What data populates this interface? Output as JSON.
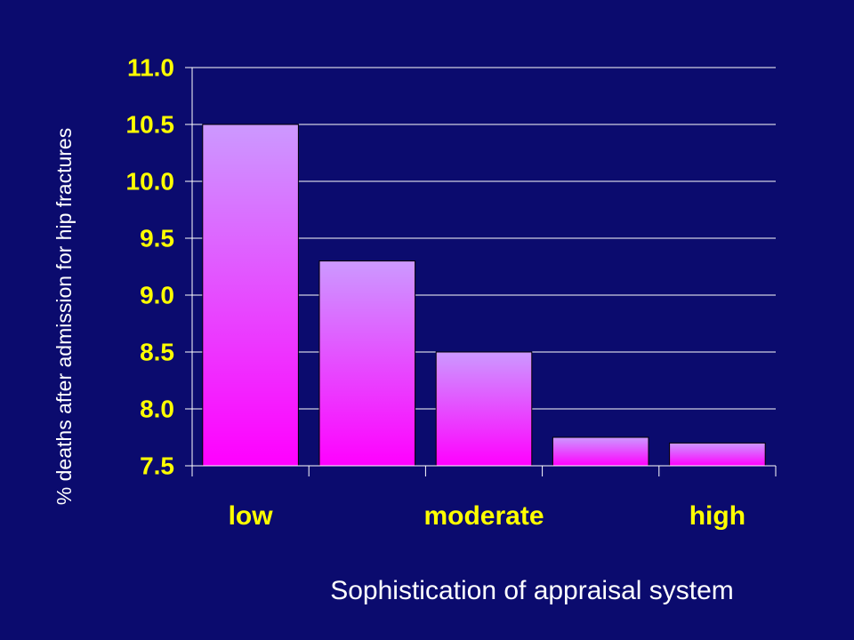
{
  "chart_data": {
    "type": "bar",
    "title": "",
    "categories": [
      "low",
      "",
      "moderate",
      "",
      "high"
    ],
    "values": [
      10.5,
      9.3,
      8.5,
      7.75,
      7.7
    ],
    "ylabel": "% deaths after admission for hip fractures",
    "xlabel": "Sophistication of appraisal system",
    "ylim": [
      7.5,
      11.0
    ],
    "yticks": [
      "7.5",
      "8.0",
      "8.5",
      "9.0",
      "9.5",
      "10.0",
      "10.5",
      "11.0"
    ],
    "grid": true,
    "legend": "none",
    "colors": {
      "background": "#0b0b6e",
      "bar_top": "#cc99ff",
      "bar_bottom": "#ff00ff",
      "tick_text": "#ffff00",
      "label_text": "#ffffff",
      "gridline": "#ffffff"
    }
  }
}
